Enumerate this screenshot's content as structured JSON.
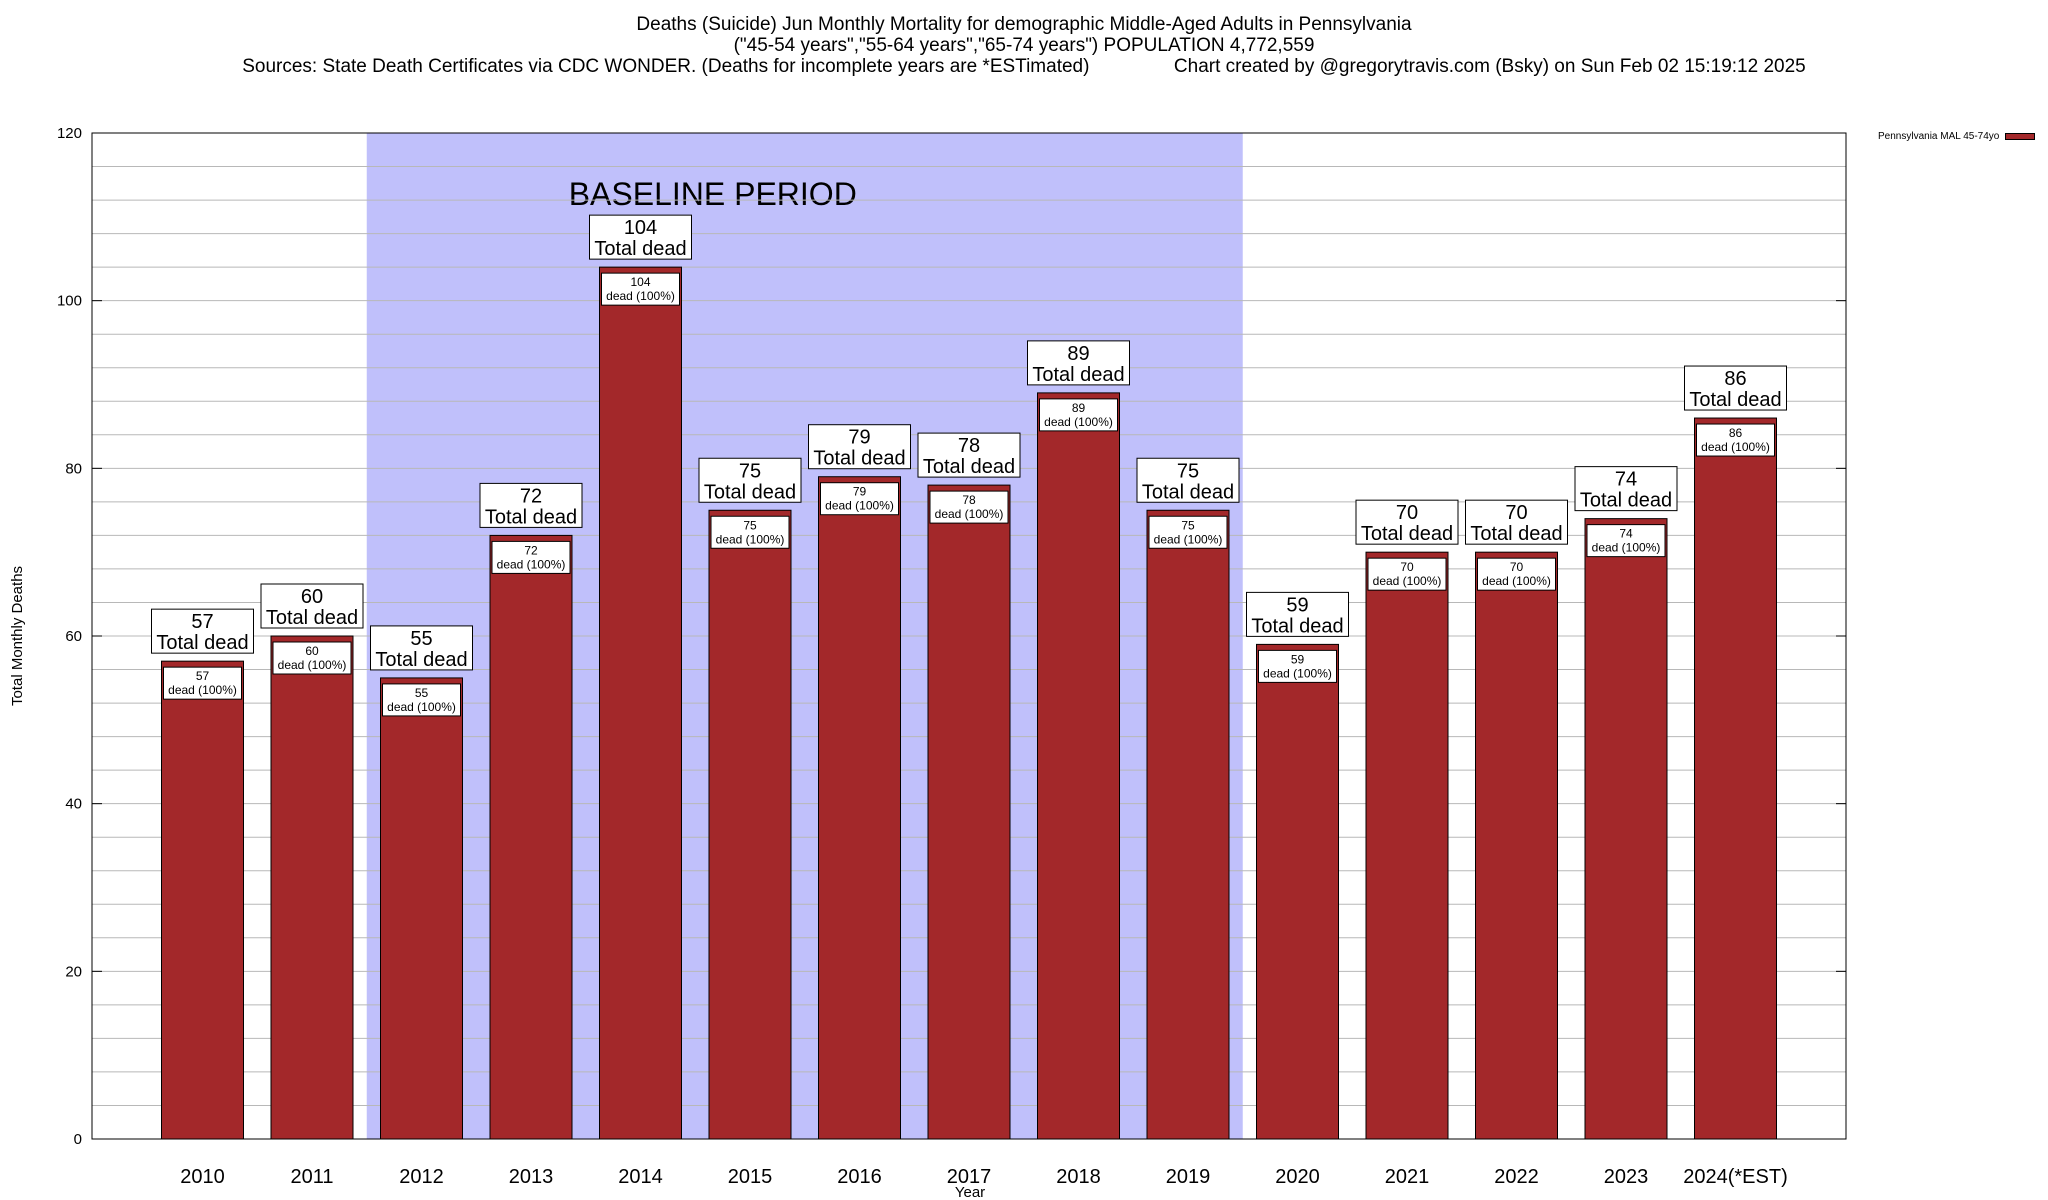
{
  "header": {
    "title": "Deaths (Suicide) Jun Monthly Mortality for demographic Middle-Aged Adults in Pennsylvania",
    "subtitle": "(\"45-54 years\",\"55-64 years\",\"65-74 years\") POPULATION 4,772,559",
    "sources": "Sources: State Death Certificates via CDC WONDER. (Deaths for incomplete years are *ESTimated)",
    "credit": "Chart created by @gregorytravis.com (Bsky) on Sun Feb 02 15:19:12 2025"
  },
  "legend": {
    "label": "Pennsylvania MAL 45-74yo",
    "color": "#a3282a"
  },
  "chart_data": {
    "type": "bar",
    "xlabel": "Year",
    "ylabel": "Total Monthly Deaths",
    "ylim": [
      0,
      120
    ],
    "y_ticks": [
      0,
      20,
      40,
      60,
      80,
      100,
      120
    ],
    "grid": true,
    "categories": [
      "2010",
      "2011",
      "2012",
      "2013",
      "2014",
      "2015",
      "2016",
      "2017",
      "2018",
      "2019",
      "2020",
      "2021",
      "2022",
      "2023",
      "2024(*EST)"
    ],
    "series": [
      {
        "name": "Pennsylvania MAL 45-74yo",
        "values": [
          57,
          60,
          55,
          72,
          104,
          75,
          79,
          78,
          89,
          75,
          59,
          70,
          70,
          74,
          86
        ],
        "color": "#a3282a"
      }
    ],
    "top_label_suffix": "Total dead",
    "inner_label_suffix": "dead (100%)",
    "baseline": {
      "label": "BASELINE PERIOD",
      "start": "2012",
      "end": "2019",
      "color": "#c0c0fb"
    }
  }
}
